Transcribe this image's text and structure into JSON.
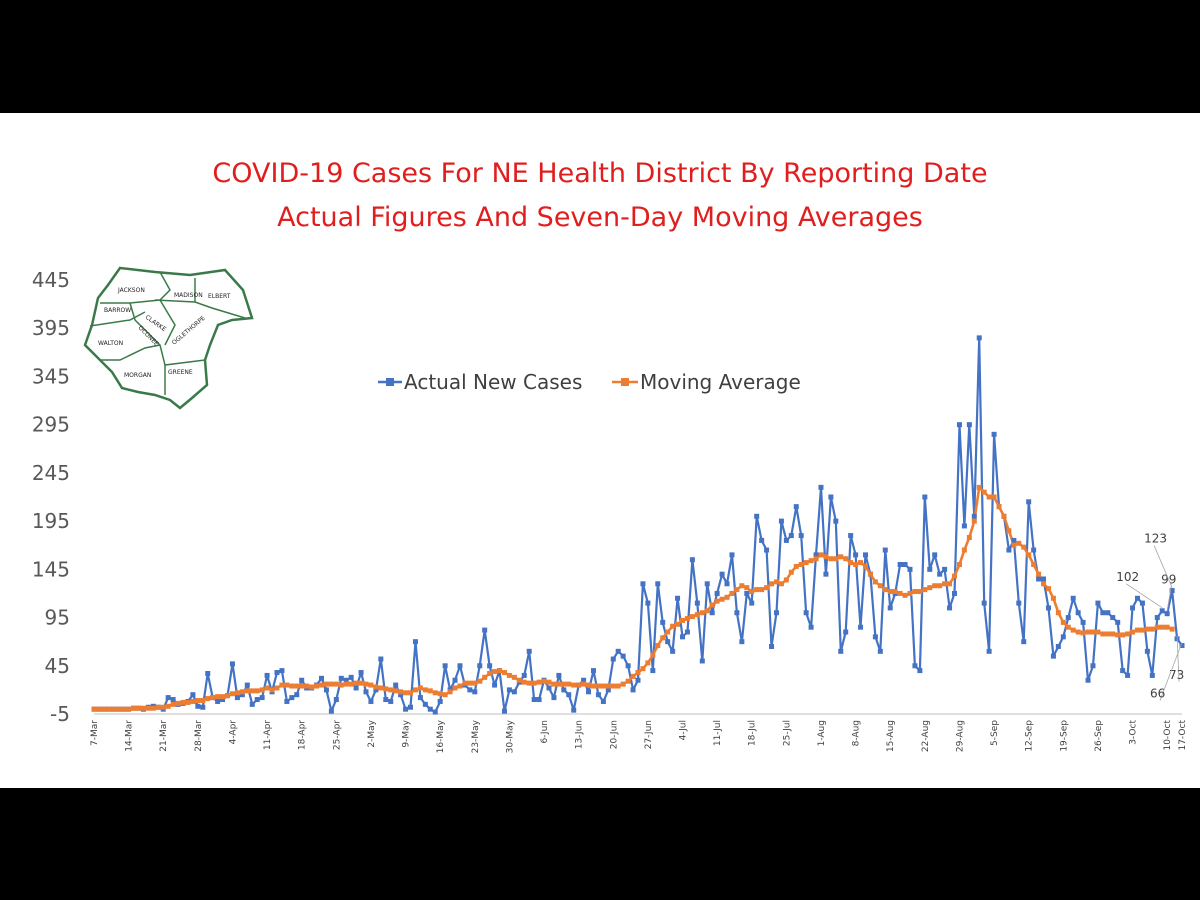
{
  "title_line1": "COVID-19 Cases For NE Health District By Reporting Date",
  "title_line2": "Actual Figures And Seven-Day Moving Averages",
  "map": {
    "counties": [
      "JACKSON",
      "MADISON",
      "ELBERT",
      "BARROW",
      "CLARKE",
      "OCONEE",
      "OGLETHORPE",
      "WALTON",
      "MORGAN",
      "GREENE"
    ]
  },
  "colors": {
    "actual": "#4472c4",
    "average": "#ed7d31",
    "title": "#e01e1e",
    "map": "#3a7a4a"
  },
  "chart_data": {
    "type": "line",
    "title": "COVID-19 Cases For NE Health District By Reporting Date Actual Figures And Seven-Day Moving Averages",
    "x_start": "7-Mar",
    "x_end": "17-Oct",
    "x_tick_labels": [
      "7-Mar",
      "14-Mar",
      "21-Mar",
      "28-Mar",
      "4-Apr",
      "11-Apr",
      "18-Apr",
      "25-Apr",
      "2-May",
      "9-May",
      "16-May",
      "23-May",
      "30-May",
      "6-Jun",
      "13-Jun",
      "20-Jun",
      "27-Jun",
      "4-Jul",
      "11-Jul",
      "18-Jul",
      "25-Jul",
      "1-Aug",
      "8-Aug",
      "15-Aug",
      "22-Aug",
      "29-Aug",
      "5-Sep",
      "12-Sep",
      "19-Sep",
      "26-Sep",
      "3-Oct",
      "10-Oct",
      "17-Oct"
    ],
    "y_ticks": [
      -5,
      45,
      95,
      145,
      195,
      245,
      295,
      345,
      395,
      445
    ],
    "ylim": [
      -5,
      445
    ],
    "legend": [
      "Actual New Cases",
      "Moving Average"
    ],
    "legend_position": "top-center",
    "series": [
      {
        "name": "Actual New Cases",
        "values": [
          0,
          0,
          0,
          0,
          0,
          0,
          0,
          0,
          1,
          1,
          0,
          2,
          3,
          2,
          0,
          12,
          10,
          5,
          6,
          8,
          15,
          3,
          2,
          37,
          12,
          8,
          10,
          14,
          47,
          12,
          15,
          25,
          5,
          10,
          12,
          35,
          18,
          38,
          40,
          8,
          12,
          15,
          30,
          22,
          22,
          25,
          32,
          20,
          -2,
          10,
          32,
          30,
          33,
          22,
          38,
          18,
          8,
          20,
          52,
          10,
          8,
          25,
          15,
          0,
          2,
          70,
          12,
          5,
          0,
          -3,
          8,
          45,
          20,
          30,
          45,
          25,
          20,
          18,
          45,
          82,
          45,
          25,
          40,
          -2,
          20,
          18,
          28,
          35,
          60,
          10,
          10,
          30,
          22,
          12,
          35,
          20,
          15,
          -1,
          25,
          30,
          18,
          40,
          15,
          8,
          20,
          52,
          60,
          55,
          45,
          20,
          30,
          130,
          110,
          40,
          130,
          90,
          70,
          60,
          115,
          75,
          80,
          155,
          110,
          50,
          130,
          100,
          120,
          140,
          130,
          160,
          100,
          70,
          120,
          110,
          200,
          175,
          165,
          65,
          100,
          195,
          175,
          180,
          210,
          180,
          100,
          85,
          160,
          230,
          140,
          220,
          195,
          60,
          80,
          180,
          160,
          85,
          160,
          140,
          75,
          60,
          165,
          105,
          120,
          150,
          150,
          145,
          45,
          40,
          220,
          145,
          160,
          140,
          145,
          105,
          120,
          295,
          190,
          295,
          200,
          385,
          110,
          60,
          285,
          210,
          200,
          165,
          175,
          110,
          70,
          215,
          165,
          135,
          135,
          105,
          55,
          65,
          75,
          95,
          115,
          100,
          90,
          30,
          45,
          110,
          100,
          100,
          95,
          90,
          40,
          35,
          105,
          115,
          110,
          60,
          35,
          95,
          102,
          99,
          123,
          73,
          66
        ]
      },
      {
        "name": "Moving Average",
        "values": [
          0,
          0,
          0,
          0,
          0,
          0,
          0,
          0,
          1,
          1,
          1,
          1,
          1,
          2,
          2,
          3,
          5,
          6,
          7,
          7,
          8,
          9,
          9,
          11,
          12,
          13,
          13,
          14,
          16,
          17,
          18,
          19,
          19,
          19,
          20,
          22,
          20,
          22,
          25,
          25,
          24,
          24,
          24,
          24,
          23,
          24,
          25,
          26,
          26,
          26,
          25,
          26,
          26,
          27,
          27,
          26,
          25,
          23,
          22,
          21,
          20,
          19,
          18,
          17,
          17,
          20,
          22,
          20,
          19,
          17,
          16,
          15,
          18,
          22,
          24,
          27,
          27,
          27,
          29,
          33,
          37,
          39,
          40,
          38,
          35,
          33,
          30,
          28,
          27,
          27,
          28,
          29,
          28,
          26,
          26,
          26,
          26,
          25,
          25,
          26,
          25,
          24,
          24,
          24,
          24,
          24,
          24,
          26,
          29,
          34,
          38,
          42,
          48,
          56,
          66,
          74,
          80,
          86,
          88,
          92,
          94,
          96,
          98,
          100,
          102,
          108,
          112,
          114,
          116,
          120,
          124,
          128,
          126,
          122,
          124,
          124,
          126,
          130,
          132,
          130,
          134,
          142,
          148,
          150,
          152,
          154,
          156,
          160,
          158,
          156,
          156,
          158,
          156,
          152,
          150,
          152,
          148,
          140,
          132,
          128,
          124,
          122,
          122,
          120,
          118,
          120,
          122,
          122,
          124,
          126,
          128,
          128,
          130,
          130,
          138,
          150,
          165,
          178,
          195,
          230,
          225,
          220,
          220,
          210,
          200,
          185,
          170,
          172,
          168,
          160,
          150,
          140,
          130,
          125,
          115,
          100,
          90,
          85,
          82,
          80,
          79,
          80,
          80,
          80,
          78,
          78,
          78,
          77,
          77,
          78,
          80,
          82,
          82,
          83,
          83,
          85,
          85,
          85,
          83
        ]
      }
    ],
    "data_labels": [
      {
        "series": "Actual New Cases",
        "x": "13-Oct",
        "value": 102
      },
      {
        "series": "Actual New Cases",
        "x": "14-Oct",
        "value": 99
      },
      {
        "series": "Actual New Cases",
        "x": "15-Oct",
        "value": 123
      },
      {
        "series": "Actual New Cases",
        "x": "16-Oct",
        "value": 73
      },
      {
        "series": "Actual New Cases",
        "x": "17-Oct",
        "value": 66
      }
    ]
  }
}
